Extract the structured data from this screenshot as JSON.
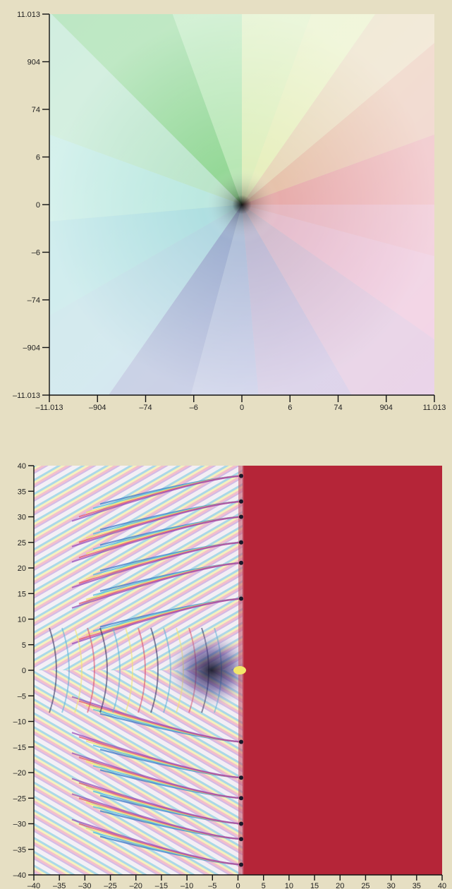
{
  "chart_data": [
    {
      "type": "heatmap",
      "rendering": "domain-coloring",
      "title": "",
      "xlabel": "",
      "ylabel": "",
      "scale": "symmetric-log",
      "xlim": [
        -11013,
        11013
      ],
      "ylim": [
        -11013,
        11013
      ],
      "x_ticks": [
        "–11.013",
        "–904",
        "–74",
        "–6",
        "0",
        "6",
        "74",
        "904",
        "11.013"
      ],
      "y_ticks": [
        "11.013",
        "904",
        "74",
        "6",
        "0",
        "–6",
        "–74",
        "–904",
        "–11.013"
      ],
      "grid": false
    },
    {
      "type": "heatmap",
      "rendering": "domain-coloring",
      "title": "",
      "xlabel": "",
      "ylabel": "",
      "scale": "linear",
      "xlim": [
        -40,
        40
      ],
      "ylim": [
        -40,
        40
      ],
      "x_ticks": [
        "–40",
        "–35",
        "–30",
        "–25",
        "–20",
        "–15",
        "–10",
        "–5",
        "0",
        "5",
        "10",
        "15",
        "20",
        "25",
        "30",
        "35",
        "40"
      ],
      "y_ticks": [
        "40",
        "35",
        "30",
        "25",
        "20",
        "15",
        "10",
        "5",
        "0",
        "–5",
        "–10",
        "–15",
        "–20",
        "–25",
        "–30",
        "–35",
        "–40"
      ],
      "grid": false
    }
  ]
}
